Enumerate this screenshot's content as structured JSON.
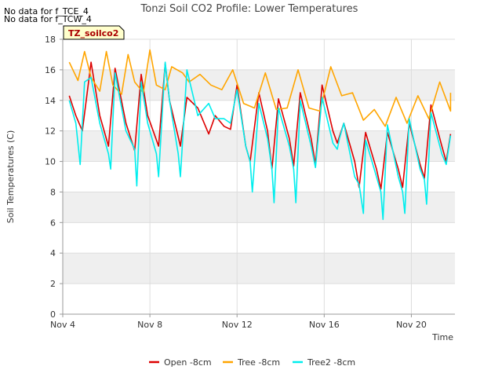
{
  "notices": [
    "No data for f_TCE_4",
    "No data for f_TCW_4"
  ],
  "chart_data": {
    "type": "line",
    "title": "Tonzi Soil CO2 Profile: Lower Temperatures",
    "xlabel": "Time",
    "ylabel": "Soil Temperatures (C)",
    "badge": "TZ_soilco2",
    "xlim_days": [
      4,
      22
    ],
    "ylim": [
      0,
      18
    ],
    "yticks": [
      0,
      2,
      4,
      6,
      8,
      10,
      12,
      14,
      16,
      18
    ],
    "xticks": [
      {
        "day": 4,
        "label": "Nov 4"
      },
      {
        "day": 8,
        "label": "Nov 8"
      },
      {
        "day": 12,
        "label": "Nov 12"
      },
      {
        "day": 16,
        "label": "Nov 16"
      },
      {
        "day": 20,
        "label": "Nov 20"
      }
    ],
    "grid": true,
    "legend_position": "bottom",
    "series": [
      {
        "name": "Open -8cm",
        "color": "#dd0000",
        "days": [
          4.3,
          4.6,
          4.9,
          5.3,
          5.7,
          6.1,
          6.4,
          6.9,
          7.3,
          7.6,
          7.9,
          8.4,
          8.7,
          8.9,
          9.4,
          9.7,
          10.2,
          10.7,
          11.0,
          11.4,
          11.7,
          12.0,
          12.4,
          12.6,
          13.0,
          13.4,
          13.6,
          13.9,
          14.4,
          14.6,
          14.9,
          15.4,
          15.6,
          15.9,
          16.4,
          16.6,
          16.9,
          17.4,
          17.6,
          17.9,
          18.4,
          18.6,
          18.9,
          19.4,
          19.6,
          19.9,
          20.4,
          20.6,
          20.9,
          21.4,
          21.6
        ],
        "values": [
          14.3,
          13.0,
          12.0,
          16.5,
          13.0,
          11.0,
          16.1,
          12.5,
          10.7,
          15.7,
          13.0,
          11.0,
          16.4,
          14.0,
          11.0,
          14.2,
          13.5,
          11.8,
          13.0,
          12.3,
          12.1,
          15.0,
          11.0,
          10.0,
          14.5,
          12.0,
          9.5,
          14.1,
          11.5,
          9.7,
          14.5,
          11.5,
          9.8,
          15.0,
          12.0,
          11.2,
          12.5,
          10.0,
          8.3,
          11.9,
          9.5,
          8.2,
          11.9,
          9.5,
          8.3,
          12.5,
          9.8,
          8.9,
          13.7,
          11.0,
          10.0
        ],
        "last_day": 21.8,
        "last_value": 11.8
      },
      {
        "name": "Tree -8cm",
        "color": "#ffa500",
        "days": [
          4.3,
          4.7,
          5.0,
          5.3,
          5.7,
          6.0,
          6.3,
          6.7,
          7.0,
          7.3,
          7.7,
          8.0,
          8.3,
          8.7,
          9.0,
          9.5,
          9.8,
          10.3,
          10.8,
          11.3,
          11.8,
          12.3,
          12.8,
          13.3,
          13.8,
          14.3,
          14.8,
          15.3,
          15.8,
          16.3,
          16.8,
          17.3,
          17.8,
          18.3,
          18.8,
          19.3,
          19.8,
          20.3,
          20.8,
          21.3,
          21.8
        ],
        "values": [
          16.5,
          15.3,
          17.2,
          15.5,
          14.6,
          17.2,
          15.0,
          14.4,
          17.0,
          15.2,
          14.5,
          17.3,
          15.0,
          14.7,
          16.2,
          15.8,
          15.2,
          15.7,
          15.0,
          14.7,
          16.0,
          13.8,
          13.5,
          15.8,
          13.4,
          13.5,
          16.0,
          13.5,
          13.3,
          16.2,
          14.3,
          14.5,
          12.7,
          13.4,
          12.3,
          14.2,
          12.5,
          14.3,
          12.8,
          15.2,
          13.3
        ],
        "last_day": 21.8,
        "last_value": 14.5
      },
      {
        "name": "Tree2 -8cm",
        "color": "#00eeee",
        "days": [
          4.3,
          4.6,
          4.8,
          5.0,
          5.3,
          5.7,
          6.1,
          6.2,
          6.4,
          6.9,
          7.3,
          7.4,
          7.6,
          7.9,
          8.3,
          8.4,
          8.7,
          8.9,
          9.3,
          9.4,
          9.7,
          10.2,
          10.7,
          11.0,
          11.4,
          11.7,
          12.0,
          12.4,
          12.6,
          12.7,
          13.0,
          13.4,
          13.6,
          13.7,
          13.9,
          14.4,
          14.6,
          14.7,
          14.9,
          15.4,
          15.6,
          15.9,
          16.4,
          16.6,
          16.7,
          16.9,
          17.4,
          17.6,
          17.8,
          17.9,
          18.4,
          18.6,
          18.7,
          18.9,
          19.4,
          19.6,
          19.7,
          19.9,
          20.4,
          20.6,
          20.7,
          20.9,
          21.4,
          21.6
        ],
        "values": [
          14.0,
          12.5,
          9.8,
          15.2,
          15.5,
          12.5,
          10.5,
          9.5,
          15.8,
          12.0,
          10.8,
          8.4,
          15.2,
          12.5,
          10.5,
          9.0,
          16.5,
          14.0,
          10.5,
          9.0,
          16.0,
          13.0,
          13.8,
          12.8,
          12.8,
          12.5,
          14.7,
          11.0,
          10.0,
          8.0,
          13.8,
          11.5,
          9.5,
          7.3,
          13.5,
          11.0,
          9.5,
          7.3,
          14.0,
          11.0,
          9.6,
          14.2,
          11.2,
          10.8,
          11.5,
          12.5,
          9.0,
          8.5,
          6.6,
          11.4,
          9.0,
          8.0,
          6.2,
          12.4,
          9.0,
          8.0,
          6.6,
          12.8,
          9.5,
          8.8,
          7.2,
          13.2,
          10.5,
          9.8
        ],
        "last_day": 21.8,
        "last_value": 11.7
      }
    ]
  }
}
